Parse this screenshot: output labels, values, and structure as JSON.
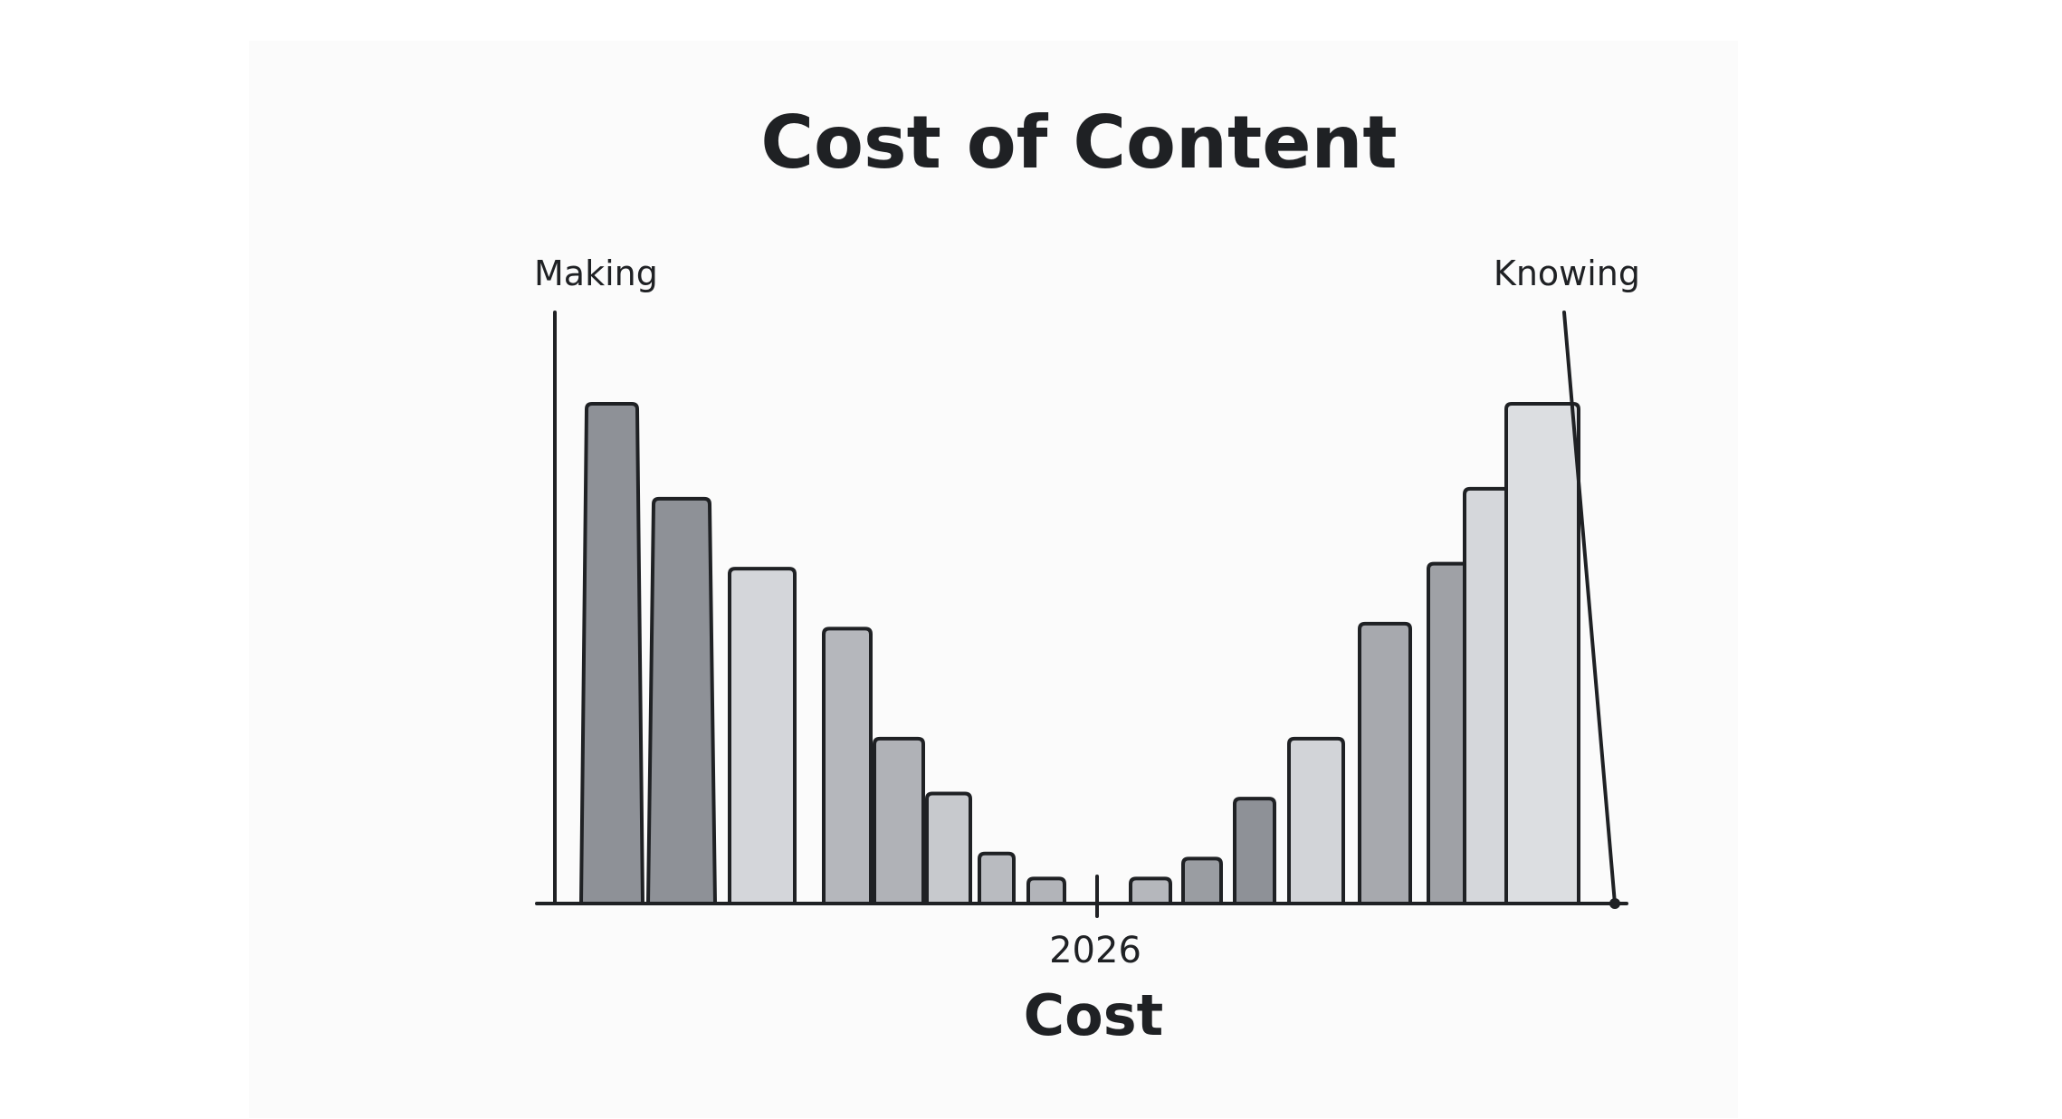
{
  "chart_data": {
    "type": "bar",
    "title": "Cost of Content",
    "xlabel": "Cost",
    "ylabel": "",
    "left_label": "Making",
    "right_label": "Knowing",
    "x_tick_labels": [
      "2026"
    ],
    "ylim": [
      0,
      100
    ],
    "grid": false,
    "legend": "none",
    "series": [
      {
        "values": [
          100,
          81,
          67,
          55,
          33,
          22,
          10,
          5,
          5,
          9,
          21,
          33,
          56,
          68,
          83,
          100
        ]
      }
    ],
    "bar_colors": [
      "#8e9197",
      "#8e9197",
      "#d4d6da",
      "#b5b7bc",
      "#b0b2b7",
      "#c7c9cd",
      "#b9bbc0",
      "#b2b4b9",
      "#b5b7bc",
      "#9a9da2",
      "#8e9197",
      "#d2d4d8",
      "#a7a9ae",
      "#9fa1a6",
      "#d5d7db",
      "#dcdee1"
    ],
    "colors": {
      "stroke": "#1f2124",
      "text": "#1f2124",
      "background": "#ffffff"
    }
  }
}
